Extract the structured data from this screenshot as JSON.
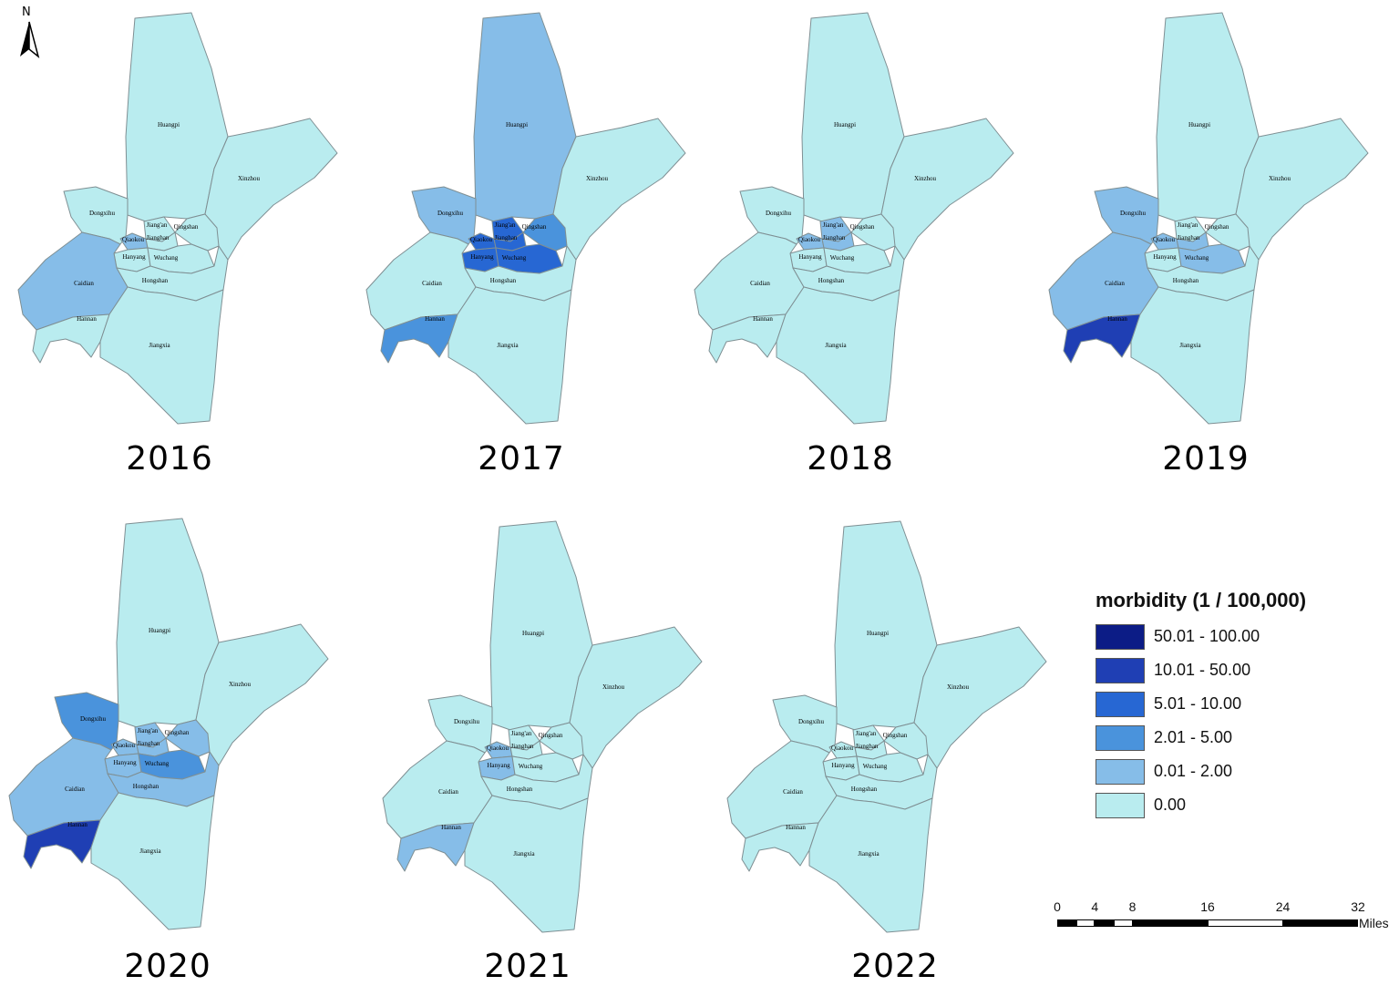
{
  "north_arrow": {
    "letter": "N"
  },
  "palette": {
    "c0": "#b9ecef",
    "c1": "#86bde8",
    "c2": "#4a93dc",
    "c3": "#2767d3",
    "c4": "#1f3fb4",
    "c5": "#0c1c86"
  },
  "districts": [
    "Huangpi",
    "Xinzhou",
    "Dongxihu",
    "Jiang'an",
    "Qingshan",
    "Qiaokou",
    "Jianghan",
    "Hanyang",
    "Wuchang",
    "Caidian",
    "Hongshan",
    "Hannan",
    "Jiangxia"
  ],
  "district_labels": {
    "Huangpi": "Huangpi",
    "Xinzhou": "Xinzhou",
    "Dongxihu": "Dongxihu",
    "Jiang'an": "Jiang'an",
    "Qingshan": "Qingshan",
    "Qiaokou": "Qiaokou",
    "Jianghan": "Jianghan",
    "Hanyang": "Hanyang",
    "Wuchang": "Wuchang",
    "Caidian": "Caidian",
    "Hongshan": "Hongshan",
    "Hannan": "Hannan",
    "Jiangxia": "Jiangxia"
  },
  "panels": [
    {
      "year": "2016",
      "classes": {
        "Huangpi": 0,
        "Xinzhou": 0,
        "Dongxihu": 0,
        "Jiang'an": 0,
        "Qingshan": 0,
        "Qiaokou": 1,
        "Jianghan": 0,
        "Hanyang": 0,
        "Wuchang": 0,
        "Caidian": 1,
        "Hongshan": 0,
        "Hannan": 0,
        "Jiangxia": 0
      }
    },
    {
      "year": "2017",
      "classes": {
        "Huangpi": 1,
        "Xinzhou": 0,
        "Dongxihu": 1,
        "Jiang'an": 3,
        "Qingshan": 2,
        "Qiaokou": 3,
        "Jianghan": 3,
        "Hanyang": 3,
        "Wuchang": 3,
        "Caidian": 0,
        "Hongshan": 0,
        "Hannan": 2,
        "Jiangxia": 0
      }
    },
    {
      "year": "2018",
      "classes": {
        "Huangpi": 0,
        "Xinzhou": 0,
        "Dongxihu": 0,
        "Jiang'an": 1,
        "Qingshan": 0,
        "Qiaokou": 1,
        "Jianghan": 1,
        "Hanyang": 0,
        "Wuchang": 0,
        "Caidian": 0,
        "Hongshan": 0,
        "Hannan": 0,
        "Jiangxia": 0
      }
    },
    {
      "year": "2019",
      "classes": {
        "Huangpi": 0,
        "Xinzhou": 0,
        "Dongxihu": 1,
        "Jiang'an": 0,
        "Qingshan": 0,
        "Qiaokou": 1,
        "Jianghan": 1,
        "Hanyang": 0,
        "Wuchang": 1,
        "Caidian": 1,
        "Hongshan": 0,
        "Hannan": 4,
        "Jiangxia": 0
      }
    },
    {
      "year": "2020",
      "classes": {
        "Huangpi": 0,
        "Xinzhou": 0,
        "Dongxihu": 2,
        "Jiang'an": 1,
        "Qingshan": 1,
        "Qiaokou": 1,
        "Jianghan": 1,
        "Hanyang": 1,
        "Wuchang": 2,
        "Caidian": 1,
        "Hongshan": 1,
        "Hannan": 4,
        "Jiangxia": 0
      }
    },
    {
      "year": "2021",
      "classes": {
        "Huangpi": 0,
        "Xinzhou": 0,
        "Dongxihu": 0,
        "Jiang'an": 0,
        "Qingshan": 0,
        "Qiaokou": 1,
        "Jianghan": 0,
        "Hanyang": 1,
        "Wuchang": 0,
        "Caidian": 0,
        "Hongshan": 0,
        "Hannan": 1,
        "Jiangxia": 0
      }
    },
    {
      "year": "2022",
      "classes": {
        "Huangpi": 0,
        "Xinzhou": 0,
        "Dongxihu": 0,
        "Jiang'an": 0,
        "Qingshan": 0,
        "Qiaokou": 0,
        "Jianghan": 0,
        "Hanyang": 0,
        "Wuchang": 0,
        "Caidian": 0,
        "Hongshan": 0,
        "Hannan": 0,
        "Jiangxia": 0
      }
    }
  ],
  "legend": {
    "title": "morbidity (1 / 100,000)",
    "items": [
      {
        "label": "50.01 - 100.00",
        "class": 5
      },
      {
        "label": "10.01 - 50.00",
        "class": 4
      },
      {
        "label": "5.01 - 10.00",
        "class": 3
      },
      {
        "label": "2.01 - 5.00",
        "class": 2
      },
      {
        "label": "0.01 - 2.00",
        "class": 1
      },
      {
        "label": "0.00",
        "class": 0
      }
    ]
  },
  "scalebar": {
    "ticks": [
      "0",
      "4",
      "8",
      "16",
      "24",
      "32"
    ],
    "tick_values": [
      0,
      4,
      8,
      16,
      24,
      32
    ],
    "units": "Miles"
  }
}
